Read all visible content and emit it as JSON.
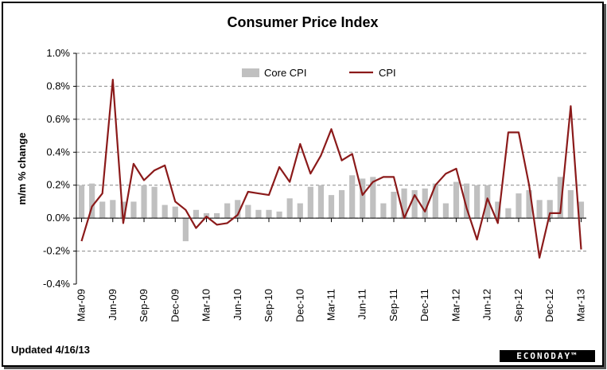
{
  "updated": "Updated 4/16/13",
  "brand": "ECONODAY™",
  "chart_data": {
    "type": "bar+line",
    "title": "Consumer Price Index",
    "xlabel": "",
    "ylabel": "m/m % change",
    "ylim": [
      -0.4,
      1.0
    ],
    "yticks": [
      "1.0%",
      "0.8%",
      "0.6%",
      "0.4%",
      "0.2%",
      "0.0%",
      "-0.2%",
      "-0.4%"
    ],
    "ytick_values": [
      1.0,
      0.8,
      0.6,
      0.4,
      0.2,
      0.0,
      -0.2,
      -0.4
    ],
    "grid": true,
    "legend": "top-center",
    "x": [
      "Mar-09",
      "Apr-09",
      "May-09",
      "Jun-09",
      "Jul-09",
      "Aug-09",
      "Sep-09",
      "Oct-09",
      "Nov-09",
      "Dec-09",
      "Jan-10",
      "Feb-10",
      "Mar-10",
      "Apr-10",
      "May-10",
      "Jun-10",
      "Jul-10",
      "Aug-10",
      "Sep-10",
      "Oct-10",
      "Nov-10",
      "Dec-10",
      "Jan-11",
      "Feb-11",
      "Mar-11",
      "Apr-11",
      "May-11",
      "Jun-11",
      "Jul-11",
      "Aug-11",
      "Sep-11",
      "Oct-11",
      "Nov-11",
      "Dec-11",
      "Jan-12",
      "Feb-12",
      "Mar-12",
      "Apr-12",
      "May-12",
      "Jun-12",
      "Jul-12",
      "Aug-12",
      "Sep-12",
      "Oct-12",
      "Nov-12",
      "Dec-12",
      "Jan-13",
      "Feb-13",
      "Mar-13"
    ],
    "xtick_labels": [
      "Mar-09",
      "Jun-09",
      "Sep-09",
      "Dec-09",
      "Mar-10",
      "Jun-10",
      "Sep-10",
      "Dec-10",
      "Mar-11",
      "Jun-11",
      "Sep-11",
      "Dec-11",
      "Mar-12",
      "Jun-12",
      "Sep-12",
      "Dec-12",
      "Mar-13"
    ],
    "series": [
      {
        "name": "Core CPI",
        "type": "bar",
        "color": "#c0c0c0",
        "values": [
          0.2,
          0.21,
          0.1,
          0.11,
          0.1,
          0.1,
          0.2,
          0.19,
          0.08,
          0.07,
          -0.14,
          0.05,
          0.03,
          0.03,
          0.09,
          0.11,
          0.08,
          0.05,
          0.05,
          0.04,
          0.12,
          0.09,
          0.19,
          0.2,
          0.14,
          0.17,
          0.26,
          0.24,
          0.25,
          0.09,
          0.16,
          0.18,
          0.17,
          0.18,
          0.21,
          0.09,
          0.22,
          0.21,
          0.2,
          0.2,
          0.1,
          0.06,
          0.15,
          0.17,
          0.11,
          0.11,
          0.25,
          0.17,
          0.1
        ]
      },
      {
        "name": "CPI",
        "type": "line",
        "color": "#8b1a1a",
        "values": [
          -0.14,
          0.07,
          0.15,
          0.84,
          -0.03,
          0.33,
          0.23,
          0.29,
          0.32,
          0.1,
          0.05,
          -0.06,
          0.01,
          -0.04,
          -0.03,
          0.02,
          0.16,
          0.15,
          0.14,
          0.31,
          0.22,
          0.45,
          0.27,
          0.38,
          0.54,
          0.35,
          0.39,
          0.14,
          0.22,
          0.25,
          0.25,
          0.0,
          0.14,
          0.04,
          0.2,
          0.27,
          0.3,
          0.06,
          -0.13,
          0.12,
          -0.03,
          0.52,
          0.52,
          0.2,
          -0.24,
          0.03,
          0.03,
          0.68,
          -0.19
        ]
      }
    ]
  }
}
